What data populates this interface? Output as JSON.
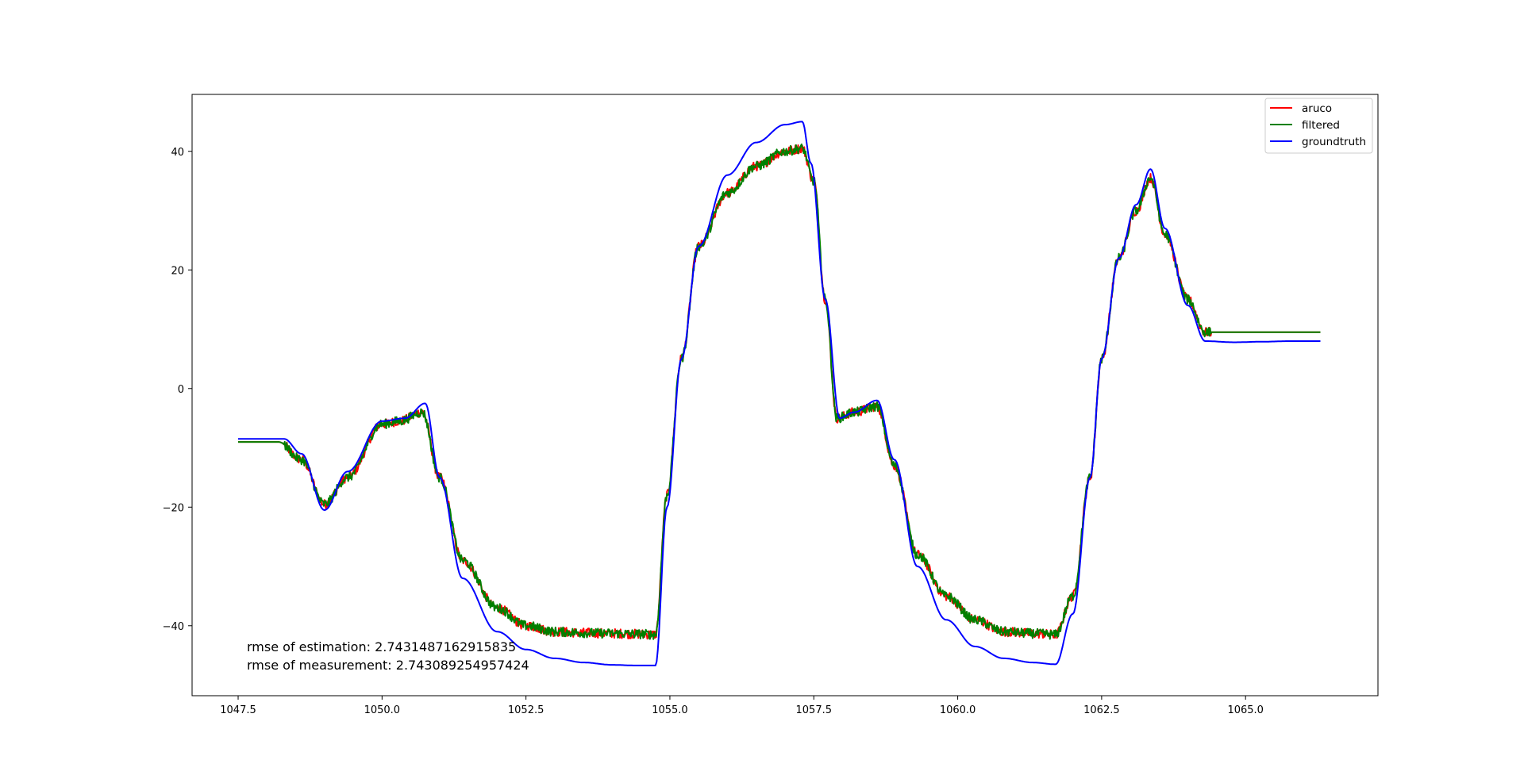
{
  "chart_data": {
    "type": "line",
    "title": "",
    "xlabel": "",
    "ylabel": "",
    "xlim": [
      1046.7,
      1067.3
    ],
    "ylim": [
      -51.8,
      49.6
    ],
    "xticks": [
      1047.5,
      1050.0,
      1052.5,
      1055.0,
      1057.5,
      1060.0,
      1062.5,
      1065.0
    ],
    "xtick_labels": [
      "1047.5",
      "1050.0",
      "1052.5",
      "1055.0",
      "1057.5",
      "1060.0",
      "1062.5",
      "1065.0"
    ],
    "yticks": [
      40,
      20,
      0,
      -20,
      -40
    ],
    "ytick_labels": [
      "40",
      "20",
      "0",
      "−20",
      "−40"
    ],
    "grid": false,
    "legend_position": "top-right",
    "annotations": [
      "rmse of estimation: 2.7431487162915835",
      "rmse of measurement: 2.743089254957424"
    ],
    "series": [
      {
        "name": "aruco",
        "color": "#ff0000",
        "x": [
          1047.5,
          1048.2,
          1048.6,
          1049.0,
          1049.4,
          1050.0,
          1050.3,
          1050.7,
          1051.0,
          1051.4,
          1052.0,
          1052.5,
          1053.0,
          1053.5,
          1054.0,
          1054.5,
          1054.75,
          1054.95,
          1055.2,
          1055.5,
          1056.0,
          1056.5,
          1057.0,
          1057.3,
          1057.5,
          1057.7,
          1057.9,
          1058.2,
          1058.6,
          1058.9,
          1059.3,
          1059.8,
          1060.3,
          1060.8,
          1061.3,
          1061.7,
          1062.0,
          1062.3,
          1062.5,
          1062.8,
          1063.1,
          1063.35,
          1063.6,
          1064.0,
          1064.3,
          1064.8,
          1065.3,
          1065.8,
          1066.3
        ],
        "values": [
          -9.0,
          -9.0,
          -12.0,
          -19.5,
          -15.0,
          -6.0,
          -5.5,
          -4.0,
          -15.0,
          -29.0,
          -37.0,
          -40.0,
          -41.0,
          -41.2,
          -41.3,
          -41.4,
          -41.5,
          -18.0,
          5.0,
          24.0,
          33.0,
          37.5,
          40.0,
          40.5,
          35.0,
          15.0,
          -5.0,
          -4.0,
          -3.0,
          -13.0,
          -28.0,
          -35.0,
          -39.0,
          -41.0,
          -41.3,
          -41.5,
          -35.0,
          -15.0,
          5.0,
          22.0,
          30.0,
          35.5,
          26.0,
          15.0,
          9.5,
          9.5,
          9.5,
          9.5,
          9.5
        ]
      },
      {
        "name": "filtered",
        "color": "#008000",
        "x": [
          1047.5,
          1048.2,
          1048.6,
          1049.0,
          1049.4,
          1050.0,
          1050.3,
          1050.7,
          1051.0,
          1051.4,
          1052.0,
          1052.5,
          1053.0,
          1053.5,
          1054.0,
          1054.5,
          1054.75,
          1054.95,
          1055.2,
          1055.5,
          1056.0,
          1056.5,
          1057.0,
          1057.3,
          1057.5,
          1057.7,
          1057.9,
          1058.2,
          1058.6,
          1058.9,
          1059.3,
          1059.8,
          1060.3,
          1060.8,
          1061.3,
          1061.7,
          1062.0,
          1062.3,
          1062.5,
          1062.8,
          1063.1,
          1063.35,
          1063.6,
          1064.0,
          1064.3,
          1064.8,
          1065.3,
          1065.8,
          1066.3
        ],
        "values": [
          -9.0,
          -9.0,
          -12.0,
          -19.5,
          -15.0,
          -6.0,
          -5.5,
          -4.0,
          -15.0,
          -29.0,
          -37.0,
          -40.0,
          -41.0,
          -41.2,
          -41.3,
          -41.4,
          -41.5,
          -18.0,
          5.0,
          24.0,
          33.0,
          37.5,
          40.0,
          40.5,
          35.0,
          15.0,
          -5.0,
          -4.0,
          -3.0,
          -13.0,
          -28.0,
          -35.0,
          -39.0,
          -41.0,
          -41.3,
          -41.5,
          -35.0,
          -15.0,
          5.0,
          22.0,
          30.0,
          35.5,
          26.0,
          15.0,
          9.5,
          9.5,
          9.5,
          9.5,
          9.5
        ]
      },
      {
        "name": "groundtruth",
        "color": "#0000ff",
        "x": [
          1047.5,
          1048.3,
          1048.6,
          1049.0,
          1049.4,
          1050.0,
          1050.4,
          1050.75,
          1051.0,
          1051.4,
          1052.0,
          1052.5,
          1053.0,
          1053.5,
          1054.0,
          1054.4,
          1054.75,
          1054.95,
          1055.2,
          1055.5,
          1056.0,
          1056.5,
          1057.0,
          1057.3,
          1057.45,
          1057.7,
          1057.95,
          1058.2,
          1058.6,
          1058.9,
          1059.3,
          1059.8,
          1060.3,
          1060.8,
          1061.3,
          1061.7,
          1062.0,
          1062.3,
          1062.5,
          1062.8,
          1063.1,
          1063.35,
          1063.6,
          1064.0,
          1064.3,
          1064.8,
          1065.3,
          1065.8,
          1066.3
        ],
        "values": [
          -8.5,
          -8.5,
          -11.0,
          -20.5,
          -14.0,
          -5.5,
          -5.0,
          -2.5,
          -15.0,
          -32.0,
          -41.0,
          -44.0,
          -45.5,
          -46.2,
          -46.6,
          -46.7,
          -46.7,
          -20.0,
          5.0,
          24.0,
          36.0,
          41.5,
          44.5,
          45.0,
          38.0,
          15.0,
          -5.0,
          -4.0,
          -2.0,
          -12.0,
          -30.0,
          -39.0,
          -43.5,
          -45.5,
          -46.2,
          -46.5,
          -38.0,
          -15.0,
          5.0,
          22.0,
          31.0,
          37.0,
          27.0,
          14.0,
          8.0,
          7.8,
          7.9,
          8.0,
          8.0
        ]
      }
    ]
  }
}
